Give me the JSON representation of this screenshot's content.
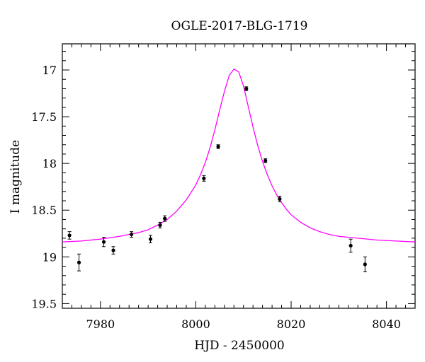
{
  "chart_data": {
    "type": "scatter",
    "title": "OGLE-2017-BLG-1719",
    "xlabel": "HJD - 2450000",
    "ylabel": "I magnitude",
    "xlim": [
      7972,
      8046
    ],
    "ylim": [
      19.55,
      16.72
    ],
    "y_inverted": true,
    "grid": false,
    "x_ticks": [
      7980,
      8000,
      8020,
      8040
    ],
    "y_ticks": [
      17,
      17.5,
      18,
      18.5,
      19,
      19.5
    ],
    "x_tick_labels": [
      "7980",
      "8000",
      "8020",
      "8040"
    ],
    "y_tick_labels": [
      "17",
      "17.5",
      "18",
      "18.5",
      "19",
      "19.5"
    ],
    "points": [
      {
        "x": 7973.5,
        "y": 18.77,
        "err": 0.04
      },
      {
        "x": 7975.5,
        "y": 19.06,
        "err": 0.09
      },
      {
        "x": 7980.7,
        "y": 18.84,
        "err": 0.05
      },
      {
        "x": 7982.7,
        "y": 18.93,
        "err": 0.04
      },
      {
        "x": 7986.5,
        "y": 18.76,
        "err": 0.03
      },
      {
        "x": 7990.5,
        "y": 18.81,
        "err": 0.04
      },
      {
        "x": 7992.5,
        "y": 18.66,
        "err": 0.03
      },
      {
        "x": 7993.5,
        "y": 18.59,
        "err": 0.03
      },
      {
        "x": 8001.7,
        "y": 18.16,
        "err": 0.03
      },
      {
        "x": 8004.7,
        "y": 17.82,
        "err": 0.02
      },
      {
        "x": 8010.6,
        "y": 17.2,
        "err": 0.02
      },
      {
        "x": 8014.6,
        "y": 17.97,
        "err": 0.02
      },
      {
        "x": 8017.6,
        "y": 18.38,
        "err": 0.03
      },
      {
        "x": 8032.5,
        "y": 18.88,
        "err": 0.07
      },
      {
        "x": 8035.5,
        "y": 19.08,
        "err": 0.08
      }
    ],
    "model_curve": {
      "color": "#ff00ff",
      "x": [
        7972,
        7976,
        7980,
        7984,
        7988,
        7990,
        7992,
        7994,
        7996,
        7998,
        8000,
        8001,
        8002,
        8003,
        8004,
        8005,
        8006,
        8007,
        8008,
        8009,
        8010,
        8011,
        8012,
        8013,
        8014,
        8015,
        8016,
        8017,
        8018,
        8019,
        8020,
        8022,
        8024,
        8026,
        8028,
        8030,
        8034,
        8038,
        8042,
        8046
      ],
      "y": [
        18.84,
        18.83,
        18.81,
        18.78,
        18.74,
        18.71,
        18.66,
        18.6,
        18.51,
        18.39,
        18.23,
        18.12,
        17.99,
        17.83,
        17.64,
        17.43,
        17.23,
        17.06,
        16.99,
        17.02,
        17.17,
        17.39,
        17.61,
        17.81,
        17.98,
        18.12,
        18.24,
        18.34,
        18.42,
        18.49,
        18.55,
        18.63,
        18.69,
        18.73,
        18.76,
        18.78,
        18.8,
        18.82,
        18.83,
        18.84
      ]
    },
    "marker_color": "#000000"
  }
}
